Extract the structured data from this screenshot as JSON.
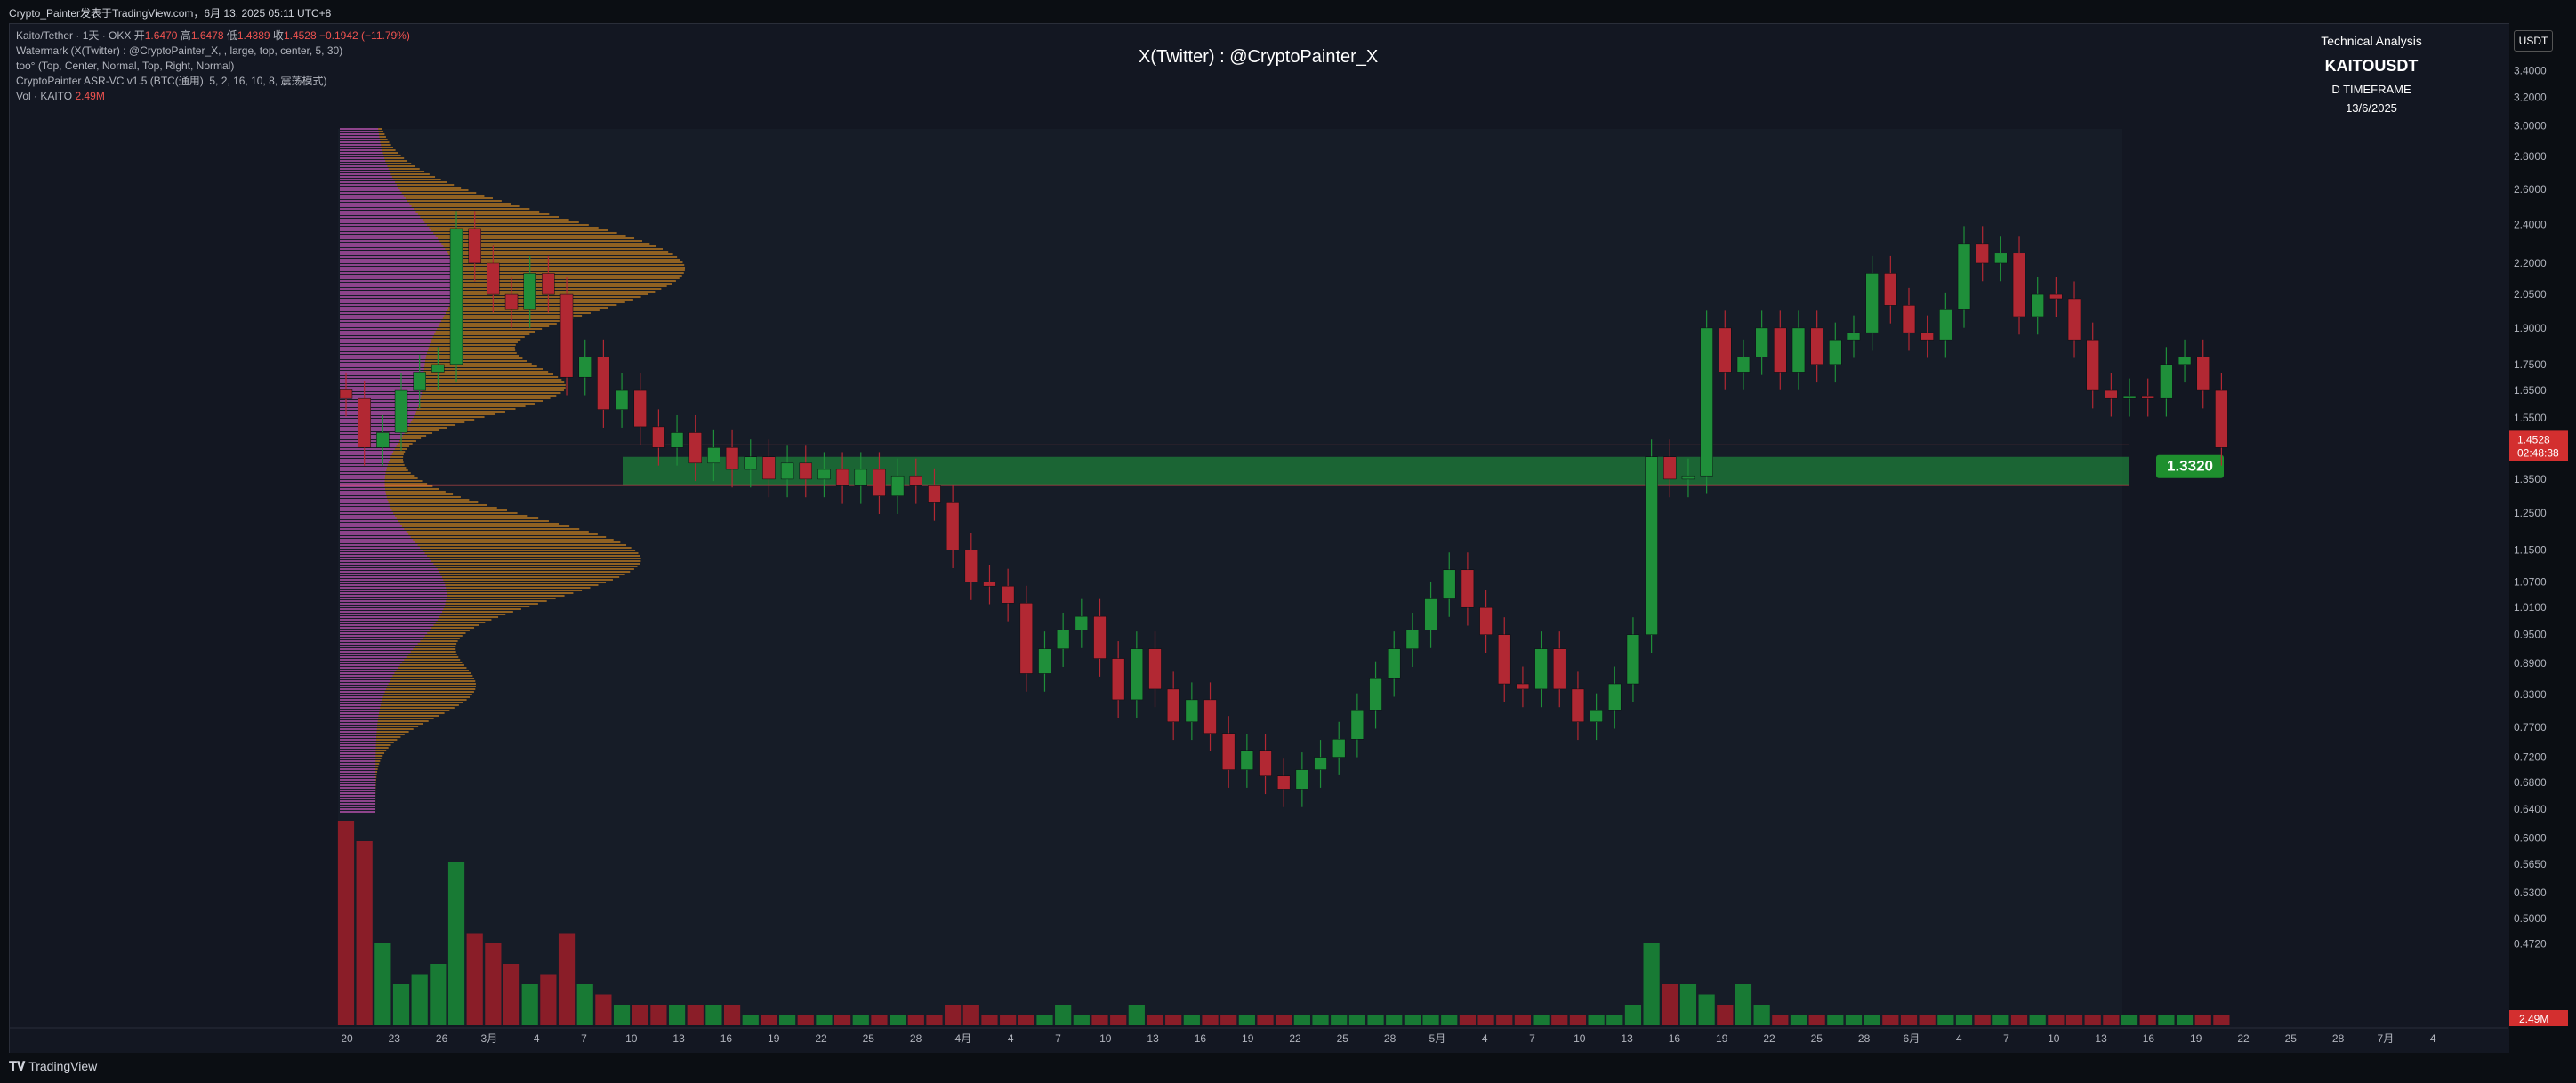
{
  "topbar": {
    "title": "Crypto_Painter发表于TradingView.com，6月 13, 2025 05:11 UTC+8"
  },
  "legend": {
    "line1_prefix": "Kaito/Tether · 1天 · OKX",
    "open_label": "开",
    "open": "1.6470",
    "high_label": "高",
    "high": "1.6478",
    "low_label": "低",
    "low": "1.4389",
    "close_label": "收",
    "close": "1.4528",
    "change": "−0.1942 (−11.79%)",
    "line2": "Watermark (X(Twitter) : @CryptoPainter_X, , large, top, center, 5, 30)",
    "line3": "too° (Top, Center, Normal, Top, Right, Normal)",
    "line4": "CryptoPainter ASR-VC v1.5 (BTC(通用), 5, 2, 16, 10, 8, 震荡模式)",
    "line5_prefix": "Vol · KAITO",
    "line5_value": "2.49M"
  },
  "watermark": "X(Twitter) : @CryptoPainter_X",
  "ta_box": {
    "title": "Technical Analysis",
    "symbol": "KAITOUSDT",
    "timeframe": "D TIMEFRAME",
    "date": "13/6/2025"
  },
  "currency_button": "USDT",
  "last_price": {
    "value": "1.4528",
    "countdown": "02:48:38"
  },
  "volume_label": "2.49M",
  "zone_label": "1.3320",
  "footer": {
    "brand": "TradingView"
  },
  "colors": {
    "up": "#26a69a",
    "up_chart": "#1f8f3a",
    "down": "#b22833",
    "zone": "#1e7d3a",
    "profile_purple": "#9c3fbf",
    "profile_orange": "#d6891f",
    "background": "#131722"
  },
  "chart_data": {
    "type": "candlestick",
    "title": "X(Twitter) : @CryptoPainter_X",
    "symbol": "KAITOUSDT",
    "timeframe": "1D",
    "y_scale": "log",
    "ylim": [
      0.43,
      3.5
    ],
    "y_ticks": [
      "3.4000",
      "3.2000",
      "3.0000",
      "2.8000",
      "2.6000",
      "2.4000",
      "2.2000",
      "2.0500",
      "1.9000",
      "1.7500",
      "1.6500",
      "1.5500",
      "1.3500",
      "1.2500",
      "1.1500",
      "1.0700",
      "1.0100",
      "0.9500",
      "0.8900",
      "0.8300",
      "0.7700",
      "0.7200",
      "0.6800",
      "0.6400",
      "0.6000",
      "0.5650",
      "0.5300",
      "0.5000",
      "0.4720"
    ],
    "y_tick_values": [
      3.4,
      3.2,
      3.0,
      2.8,
      2.6,
      2.4,
      2.2,
      2.05,
      1.9,
      1.75,
      1.65,
      1.55,
      1.35,
      1.25,
      1.15,
      1.07,
      1.01,
      0.95,
      0.89,
      0.83,
      0.77,
      0.72,
      0.68,
      0.64,
      0.6,
      0.565,
      0.53,
      0.5,
      0.472
    ],
    "x_tick_labels": [
      "20",
      "23",
      "26",
      "3月",
      "4",
      "7",
      "10",
      "13",
      "16",
      "19",
      "22",
      "25",
      "28",
      "4月",
      "4",
      "7",
      "10",
      "13",
      "16",
      "19",
      "22",
      "25",
      "28",
      "5月",
      "4",
      "7",
      "10",
      "13",
      "16",
      "19",
      "22",
      "25",
      "28",
      "6月",
      "4",
      "7",
      "10",
      "13",
      "16",
      "19",
      "22",
      "25",
      "28",
      "7月",
      "4"
    ],
    "support_zone": {
      "low": 1.332,
      "high": 1.42,
      "label": "1.3320"
    },
    "closes": [
      1.62,
      1.45,
      1.5,
      1.65,
      1.72,
      1.75,
      2.38,
      2.2,
      2.05,
      1.98,
      2.15,
      2.05,
      1.7,
      1.78,
      1.58,
      1.65,
      1.52,
      1.45,
      1.5,
      1.4,
      1.45,
      1.38,
      1.42,
      1.35,
      1.4,
      1.35,
      1.38,
      1.33,
      1.38,
      1.3,
      1.36,
      1.33,
      1.28,
      1.15,
      1.07,
      1.06,
      1.02,
      0.87,
      0.92,
      0.96,
      0.99,
      0.9,
      0.82,
      0.92,
      0.84,
      0.78,
      0.82,
      0.76,
      0.7,
      0.73,
      0.69,
      0.67,
      0.7,
      0.72,
      0.75,
      0.8,
      0.86,
      0.92,
      0.96,
      1.03,
      1.1,
      1.01,
      0.95,
      0.85,
      0.84,
      0.92,
      0.84,
      0.78,
      0.8,
      0.85,
      0.95,
      1.42,
      1.35,
      1.36,
      1.9,
      1.72,
      1.78,
      1.9,
      1.72,
      1.9,
      1.75,
      1.85,
      1.88,
      2.15,
      2.0,
      1.88,
      1.85,
      1.98,
      2.3,
      2.2,
      2.25,
      1.95,
      2.05,
      2.03,
      1.85,
      1.65,
      1.62,
      1.63,
      1.62,
      1.75,
      1.78,
      1.65,
      1.45
    ],
    "volumes": [
      20,
      18,
      8,
      4,
      5,
      6,
      16,
      9,
      8,
      6,
      4,
      5,
      9,
      4,
      3,
      2,
      2,
      2,
      2,
      2,
      2,
      2,
      1,
      1,
      1,
      1,
      1,
      1,
      1,
      1,
      1,
      1,
      1,
      2,
      2,
      1,
      1,
      1,
      1,
      2,
      1,
      1,
      1,
      2,
      1,
      1,
      1,
      1,
      1,
      1,
      1,
      1,
      1,
      1,
      1,
      1,
      1,
      1,
      1,
      1,
      1,
      1,
      1,
      1,
      1,
      1,
      1,
      1,
      1,
      1,
      2,
      8,
      4,
      4,
      3,
      2,
      4,
      2,
      1,
      1,
      1,
      1,
      1,
      1,
      1,
      1,
      1,
      1,
      1,
      1,
      1,
      1,
      1,
      1,
      1,
      1,
      1,
      1,
      1,
      1,
      1,
      1,
      1
    ],
    "last": {
      "open": 1.647,
      "high": 1.6478,
      "low": 1.4389,
      "close": 1.4528,
      "volume": "2.49M"
    }
  }
}
